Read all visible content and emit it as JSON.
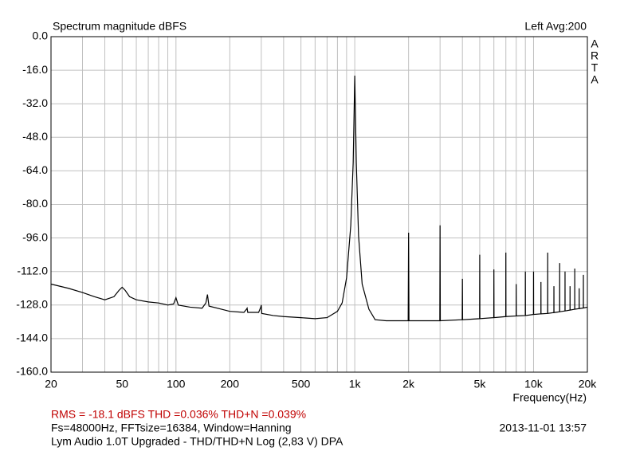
{
  "chart_data": {
    "type": "line",
    "title": "Spectrum magnitude dBFS",
    "annotations": {
      "channel": "Left  Avg:200",
      "brand": [
        "A",
        "R",
        "T",
        "A"
      ],
      "measurement": "RMS =  -18.1 dBFS   THD =0.036%   THD+N =0.039%",
      "settings": "Fs=48000Hz, FFTsize=16384, Window=Hanning",
      "timestamp": "2013-11-01  13:57",
      "device": "Lym Audio 1.0T Upgraded - THD/THD+N Log (2,83 V)     DPA"
    },
    "x_label": "Frequency(Hz)",
    "xscale": "log",
    "grid": true,
    "color": "#000000",
    "xlim": [
      20,
      20000
    ],
    "ylim": [
      -160,
      0
    ],
    "yticks": [
      {
        "value": 0,
        "label": "0.0"
      },
      {
        "value": -16,
        "label": "-16.0"
      },
      {
        "value": -32,
        "label": "-32.0"
      },
      {
        "value": -48,
        "label": "-48.0"
      },
      {
        "value": -64,
        "label": "-64.0"
      },
      {
        "value": -80,
        "label": "-80.0"
      },
      {
        "value": -96,
        "label": "-96.0"
      },
      {
        "value": -112,
        "label": "-112.0"
      },
      {
        "value": -128,
        "label": "-128.0"
      },
      {
        "value": -144,
        "label": "-144.0"
      },
      {
        "value": -160,
        "label": "-160.0"
      }
    ],
    "xticks": [
      20,
      50,
      100,
      200,
      500,
      {
        "value": 1000,
        "label": "1k"
      },
      {
        "value": 2000,
        "label": "2k"
      },
      {
        "value": 5000,
        "label": "5k"
      },
      {
        "value": 10000,
        "label": "10k"
      },
      {
        "value": 20000,
        "label": "20k"
      }
    ],
    "xgrid": [
      30,
      40,
      60,
      70,
      80,
      90,
      300,
      400,
      600,
      700,
      800,
      900,
      3000,
      4000,
      6000,
      7000,
      8000,
      9000
    ],
    "x": [
      20,
      25,
      30,
      35,
      40,
      45,
      48,
      50,
      52,
      55,
      60,
      70,
      80,
      90,
      97,
      100,
      103,
      120,
      140,
      147,
      150,
      153,
      180,
      200,
      240,
      248,
      250,
      252,
      290,
      298,
      300,
      302,
      350,
      400,
      500,
      600,
      700,
      800,
      850,
      900,
      950,
      980,
      1000,
      1020,
      1050,
      1100,
      1200,
      1300,
      1500,
      1990,
      2000,
      2010,
      2990,
      3000,
      3010,
      3990,
      4000,
      4010,
      4990,
      5000,
      5010,
      5990,
      6000,
      6010,
      6990,
      7000,
      7010,
      7990,
      8000,
      8010,
      8990,
      9000,
      9010,
      9990,
      10000,
      10010,
      10990,
      11000,
      11010,
      11990,
      12000,
      12010,
      12990,
      13000,
      13010,
      13990,
      14000,
      14010,
      14990,
      15000,
      15010,
      15990,
      16000,
      16010,
      16990,
      17000,
      17010,
      17990,
      18000,
      18010,
      18990,
      19000,
      19010,
      20000
    ],
    "values": [
      -118,
      -120,
      -122,
      -124,
      -125.5,
      -124,
      -121,
      -119.5,
      -121,
      -124,
      -125.5,
      -126.5,
      -127,
      -128,
      -127.5,
      -124.5,
      -128,
      -129,
      -129.5,
      -127,
      -123,
      -128.5,
      -130,
      -131,
      -131.5,
      -130,
      -129.5,
      -131.5,
      -131.5,
      -129,
      -128,
      -132,
      -133,
      -133.5,
      -134,
      -134.5,
      -134,
      -131,
      -127,
      -115,
      -90,
      -60,
      -18.6,
      -60,
      -95,
      -118,
      -130,
      -135,
      -135.5,
      -135.5,
      -93.5,
      -135.5,
      -135.5,
      -90,
      -135.5,
      -135,
      -115.5,
      -135,
      -134.5,
      -104,
      -134.5,
      -134,
      -111,
      -134,
      -133.5,
      -103,
      -133.5,
      -133.2,
      -118,
      -133.2,
      -133,
      -112,
      -133,
      -132.5,
      -112,
      -132.5,
      -132.2,
      -117,
      -132.2,
      -132,
      -103,
      -132,
      -131.6,
      -119,
      -131.6,
      -131.2,
      -108,
      -131.2,
      -130.8,
      -112,
      -130.8,
      -130.4,
      -119,
      -130.4,
      -130,
      -110.6,
      -130,
      -129.7,
      -120,
      -129.7,
      -129.4,
      -113.6,
      -129.4,
      -129
    ]
  }
}
